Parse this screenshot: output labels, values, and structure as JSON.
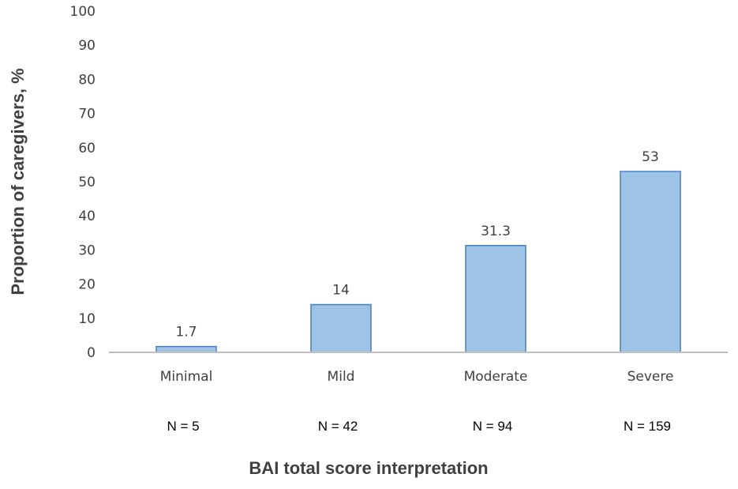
{
  "chart_data": {
    "type": "bar",
    "categories": [
      "Minimal",
      "Mild",
      "Moderate",
      "Severe"
    ],
    "values": [
      1.7,
      14,
      31.3,
      53
    ],
    "data_labels": [
      "1.7",
      "14",
      "31.3",
      "53"
    ],
    "n_labels": [
      "N = 5",
      "N = 42",
      "N = 94",
      "N = 159"
    ],
    "ylabel": "Proportion of caregivers, %",
    "xlabel": "BAI total score interpretation",
    "ylim": [
      0,
      100
    ],
    "yticks": [
      0,
      10,
      20,
      30,
      40,
      50,
      60,
      70,
      80,
      90,
      100
    ],
    "grid": false,
    "legend": "none",
    "colors": {
      "bar_fill": "#9dc3e6",
      "bar_stroke": "#4a7fc1",
      "axis": "#bfbfbf",
      "text": "#404040"
    }
  }
}
